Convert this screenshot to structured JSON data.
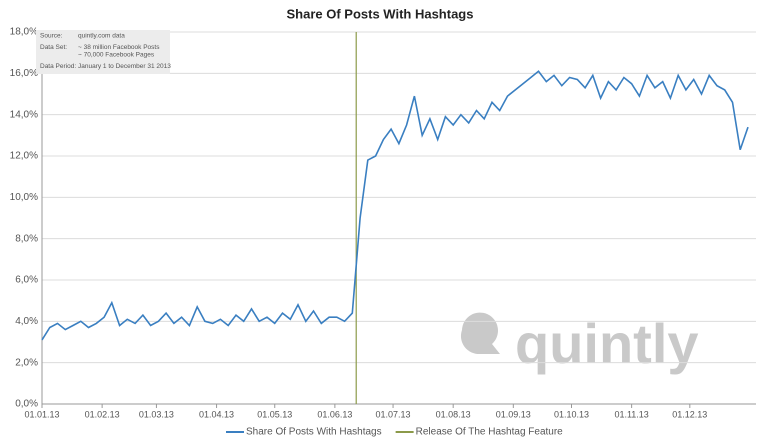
{
  "chart_data": {
    "type": "line",
    "title": "Share Of Posts With Hashtags",
    "info": [
      {
        "label": "Source:",
        "lines": [
          "quintly.com data"
        ]
      },
      {
        "label": "Data Set:",
        "lines": [
          "~ 38 million Facebook Posts",
          "~ 70,000 Facebook Pages"
        ]
      },
      {
        "label": "Data Period:",
        "lines": [
          "January 1 to December 31 2013"
        ]
      }
    ],
    "watermark": "quintly",
    "x": [
      "01.01.13",
      "05.01.13",
      "09.01.13",
      "13.01.13",
      "17.01.13",
      "21.01.13",
      "25.01.13",
      "29.01.13",
      "02.02.13",
      "06.02.13",
      "10.02.13",
      "14.02.13",
      "18.02.13",
      "22.02.13",
      "26.02.13",
      "02.03.13",
      "06.03.13",
      "10.03.13",
      "14.03.13",
      "18.03.13",
      "22.03.13",
      "26.03.13",
      "30.03.13",
      "03.04.13",
      "07.04.13",
      "11.04.13",
      "15.04.13",
      "19.04.13",
      "23.04.13",
      "27.04.13",
      "01.05.13",
      "05.05.13",
      "09.05.13",
      "13.05.13",
      "17.05.13",
      "21.05.13",
      "25.05.13",
      "29.05.13",
      "02.06.13",
      "06.06.13",
      "10.06.13",
      "14.06.13",
      "18.06.13",
      "22.06.13",
      "26.06.13",
      "30.06.13",
      "04.07.13",
      "08.07.13",
      "12.07.13",
      "16.07.13",
      "20.07.13",
      "24.07.13",
      "28.07.13",
      "01.08.13",
      "05.08.13",
      "09.08.13",
      "13.08.13",
      "17.08.13",
      "21.08.13",
      "25.08.13",
      "29.08.13",
      "02.09.13",
      "06.09.13",
      "10.09.13",
      "14.09.13",
      "18.09.13",
      "22.09.13",
      "26.09.13",
      "30.09.13",
      "04.10.13",
      "08.10.13",
      "12.10.13",
      "16.10.13",
      "20.10.13",
      "24.10.13",
      "28.10.13",
      "01.11.13",
      "05.11.13",
      "09.11.13",
      "13.11.13",
      "17.11.13",
      "21.11.13",
      "25.11.13",
      "29.11.13",
      "03.12.13",
      "07.12.13",
      "11.12.13",
      "15.12.13",
      "19.12.13",
      "23.12.13",
      "27.12.13",
      "31.12.13"
    ],
    "series": [
      {
        "name": "Share Of Posts With Hashtags",
        "color": "#3a7fc1",
        "values": [
          3.1,
          3.7,
          3.9,
          3.6,
          3.8,
          4.0,
          3.7,
          3.9,
          4.2,
          4.9,
          3.8,
          4.1,
          3.9,
          4.3,
          3.8,
          4.0,
          4.4,
          3.9,
          4.2,
          3.8,
          4.7,
          4.0,
          3.9,
          4.1,
          3.8,
          4.3,
          4.0,
          4.6,
          4.0,
          4.2,
          3.9,
          4.4,
          4.1,
          4.8,
          4.0,
          4.5,
          3.9,
          4.2,
          4.2,
          4.0,
          4.4,
          9.0,
          11.8,
          12.0,
          12.8,
          13.3,
          12.6,
          13.5,
          14.9,
          13.0,
          13.8,
          12.8,
          13.9,
          13.5,
          14.0,
          13.6,
          14.2,
          13.8,
          14.6,
          14.2,
          14.9,
          15.2,
          15.5,
          15.8,
          16.1,
          15.6,
          15.9,
          15.4,
          15.8,
          15.7,
          15.3,
          15.9,
          14.8,
          15.6,
          15.2,
          15.8,
          15.5,
          14.9,
          15.9,
          15.3,
          15.6,
          14.8,
          15.9,
          15.2,
          15.7,
          15.0,
          15.9,
          15.4,
          15.2,
          14.6,
          12.3,
          13.4
        ]
      }
    ],
    "events": [
      {
        "x": "12.06.13",
        "label": "Release Of The Hashtag Feature",
        "color": "#8c9a4a"
      }
    ],
    "xlim": [
      "01.01.13",
      "31.12.13"
    ],
    "xticks": [
      "01.01.13",
      "01.02.13",
      "01.03.13",
      "01.04.13",
      "01.05.13",
      "01.06.13",
      "01.07.13",
      "01.08.13",
      "01.09.13",
      "01.10.13",
      "01.11.13",
      "01.12.13"
    ],
    "ylim": [
      0,
      18
    ],
    "yticks": [
      {
        "value": 0,
        "label": "0,0%"
      },
      {
        "value": 2,
        "label": "2,0%"
      },
      {
        "value": 4,
        "label": "4,0%"
      },
      {
        "value": 6,
        "label": "6,0%"
      },
      {
        "value": 8,
        "label": "8,0%"
      },
      {
        "value": 10,
        "label": "10,0%"
      },
      {
        "value": 12,
        "label": "12,0%"
      },
      {
        "value": 14,
        "label": "14,0%"
      },
      {
        "value": 16,
        "label": "16,0%"
      },
      {
        "value": 18,
        "label": "18,0%"
      }
    ],
    "grid": true,
    "legend": "bottom"
  }
}
